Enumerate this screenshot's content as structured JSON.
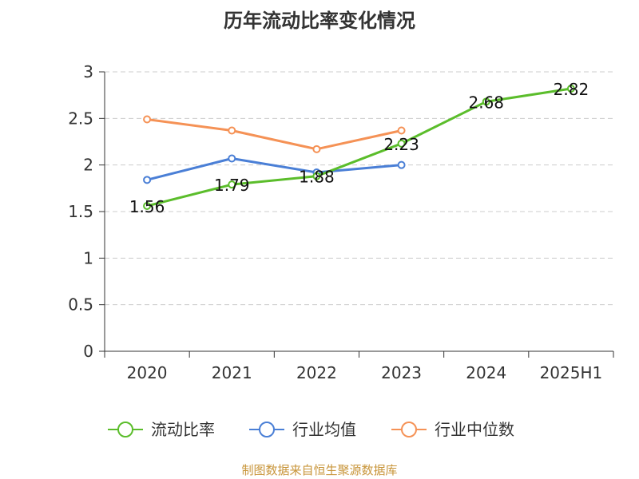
{
  "chart_data": {
    "type": "line",
    "title": "历年流动比率变化情况",
    "categories": [
      "2020",
      "2021",
      "2022",
      "2023",
      "2024",
      "2025H1"
    ],
    "ylim": [
      0,
      3
    ],
    "yticks": [
      "0",
      "0.5",
      "1",
      "1.5",
      "2",
      "2.5",
      "3"
    ],
    "grid": true,
    "legend_position": "bottom",
    "series": [
      {
        "name": "流动比率",
        "color": "#5bbd2b",
        "values": [
          1.56,
          1.79,
          1.88,
          2.23,
          2.68,
          2.82
        ],
        "labels": [
          "1.56",
          "1.79",
          "1.88",
          "2.23",
          "2.68",
          "2.82"
        ]
      },
      {
        "name": "行业均值",
        "color": "#4a7fd6",
        "values": [
          1.84,
          2.07,
          1.92,
          2.0,
          null,
          null
        ]
      },
      {
        "name": "行业中位数",
        "color": "#f59256",
        "values": [
          2.49,
          2.37,
          2.17,
          2.37,
          null,
          null
        ]
      }
    ],
    "source": "制图数据来自恒生聚源数据库"
  }
}
